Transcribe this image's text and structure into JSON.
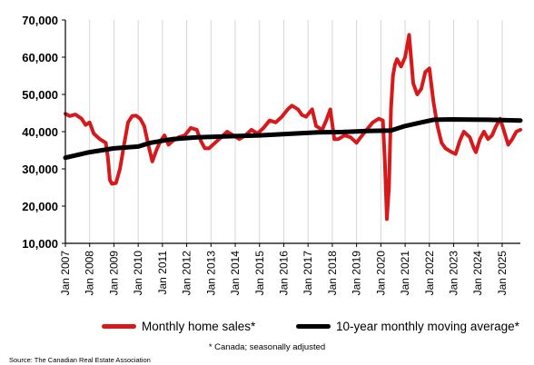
{
  "chart_data": {
    "type": "line",
    "title": "",
    "xlabel": "",
    "ylabel": "",
    "ylim": [
      10000,
      70000
    ],
    "yticks": [
      "10,000",
      "20,000",
      "30,000",
      "40,000",
      "50,000",
      "60,000",
      "70,000"
    ],
    "xticks": [
      "Jan 2007",
      "Jan 2008",
      "Jan 2009",
      "Jan 2010",
      "Jan 2011",
      "Jan 2012",
      "Jan 2013",
      "Jan 2014",
      "Jan 2015",
      "Jan 2016",
      "Jan 2017",
      "Jan 2018",
      "Jan 2019",
      "Jan 2020",
      "Jan 2021",
      "Jan 2022",
      "Jan 2023",
      "Jan 2024",
      "Jan 2025"
    ],
    "x_range": [
      "2007-01",
      "2025-10"
    ],
    "grid": "vertical",
    "legend_position": "bottom",
    "series": [
      {
        "name": "Monthly home sales*",
        "color": "#d7191c",
        "points": [
          [
            "2007-01",
            44800
          ],
          [
            "2007-03",
            44200
          ],
          [
            "2007-06",
            44600
          ],
          [
            "2007-09",
            43500
          ],
          [
            "2007-11",
            41800
          ],
          [
            "2008-01",
            42500
          ],
          [
            "2008-03",
            39500
          ],
          [
            "2008-06",
            38000
          ],
          [
            "2008-09",
            37000
          ],
          [
            "2008-10",
            33000
          ],
          [
            "2008-11",
            27000
          ],
          [
            "2008-12",
            26000
          ],
          [
            "2009-02",
            26200
          ],
          [
            "2009-04",
            30000
          ],
          [
            "2009-06",
            36500
          ],
          [
            "2009-08",
            42500
          ],
          [
            "2009-10",
            44200
          ],
          [
            "2009-12",
            44300
          ],
          [
            "2010-02",
            43500
          ],
          [
            "2010-04",
            41500
          ],
          [
            "2010-06",
            36500
          ],
          [
            "2010-08",
            32000
          ],
          [
            "2010-10",
            35000
          ],
          [
            "2010-12",
            37500
          ],
          [
            "2011-02",
            39000
          ],
          [
            "2011-04",
            36500
          ],
          [
            "2011-06",
            37500
          ],
          [
            "2011-09",
            38500
          ],
          [
            "2011-12",
            39000
          ],
          [
            "2012-03",
            41000
          ],
          [
            "2012-06",
            40500
          ],
          [
            "2012-08",
            37500
          ],
          [
            "2012-10",
            35500
          ],
          [
            "2012-12",
            35500
          ],
          [
            "2013-03",
            37000
          ],
          [
            "2013-06",
            38500
          ],
          [
            "2013-09",
            40000
          ],
          [
            "2013-12",
            39000
          ],
          [
            "2014-03",
            38000
          ],
          [
            "2014-06",
            39000
          ],
          [
            "2014-09",
            40500
          ],
          [
            "2014-12",
            39500
          ],
          [
            "2015-03",
            41000
          ],
          [
            "2015-06",
            43000
          ],
          [
            "2015-09",
            42500
          ],
          [
            "2015-12",
            44000
          ],
          [
            "2016-03",
            46000
          ],
          [
            "2016-05",
            47000
          ],
          [
            "2016-08",
            46000
          ],
          [
            "2016-10",
            44500
          ],
          [
            "2016-12",
            44000
          ],
          [
            "2017-03",
            46000
          ],
          [
            "2017-05",
            41500
          ],
          [
            "2017-08",
            40500
          ],
          [
            "2017-10",
            43000
          ],
          [
            "2017-12",
            46000
          ],
          [
            "2018-02",
            38000
          ],
          [
            "2018-04",
            38000
          ],
          [
            "2018-07",
            39000
          ],
          [
            "2018-10",
            38500
          ],
          [
            "2019-01",
            37000
          ],
          [
            "2019-03",
            38500
          ],
          [
            "2019-06",
            40500
          ],
          [
            "2019-09",
            42500
          ],
          [
            "2019-12",
            43500
          ],
          [
            "2020-02",
            43000
          ],
          [
            "2020-03",
            32000
          ],
          [
            "2020-04",
            16500
          ],
          [
            "2020-05",
            25000
          ],
          [
            "2020-06",
            46000
          ],
          [
            "2020-07",
            55000
          ],
          [
            "2020-08",
            58000
          ],
          [
            "2020-09",
            59500
          ],
          [
            "2020-11",
            57500
          ],
          [
            "2021-01",
            60000
          ],
          [
            "2021-03",
            66000
          ],
          [
            "2021-05",
            53000
          ],
          [
            "2021-07",
            50000
          ],
          [
            "2021-09",
            51500
          ],
          [
            "2021-11",
            56000
          ],
          [
            "2022-01",
            57000
          ],
          [
            "2022-03",
            48000
          ],
          [
            "2022-05",
            41500
          ],
          [
            "2022-07",
            37000
          ],
          [
            "2022-09",
            35500
          ],
          [
            "2022-12",
            34500
          ],
          [
            "2023-02",
            34000
          ],
          [
            "2023-04",
            37500
          ],
          [
            "2023-06",
            40000
          ],
          [
            "2023-09",
            38500
          ],
          [
            "2023-11",
            35500
          ],
          [
            "2023-12",
            34500
          ],
          [
            "2024-02",
            38000
          ],
          [
            "2024-04",
            40000
          ],
          [
            "2024-06",
            38000
          ],
          [
            "2024-08",
            39000
          ],
          [
            "2024-10",
            41500
          ],
          [
            "2024-12",
            43500
          ],
          [
            "2025-02",
            40000
          ],
          [
            "2025-04",
            36500
          ],
          [
            "2025-06",
            38000
          ],
          [
            "2025-08",
            40000
          ],
          [
            "2025-10",
            40500
          ]
        ]
      },
      {
        "name": "10-year monthly moving average*",
        "color": "#000000",
        "points": [
          [
            "2007-01",
            33000
          ],
          [
            "2008-01",
            34500
          ],
          [
            "2009-01",
            35500
          ],
          [
            "2010-01",
            36000
          ],
          [
            "2010-07",
            37000
          ],
          [
            "2011-06",
            38000
          ],
          [
            "2012-06",
            38500
          ],
          [
            "2014-01",
            38800
          ],
          [
            "2015-01",
            39000
          ],
          [
            "2016-06",
            39500
          ],
          [
            "2017-06",
            39800
          ],
          [
            "2018-06",
            39900
          ],
          [
            "2019-06",
            40200
          ],
          [
            "2020-06",
            40300
          ],
          [
            "2021-01",
            41500
          ],
          [
            "2021-09",
            42500
          ],
          [
            "2022-03",
            43200
          ],
          [
            "2023-01",
            43300
          ],
          [
            "2024-06",
            43200
          ],
          [
            "2025-10",
            43000
          ]
        ]
      }
    ]
  },
  "footnote": "* Canada; seasonally adjusted",
  "source": "Source: The Canadian Real Estate Association"
}
